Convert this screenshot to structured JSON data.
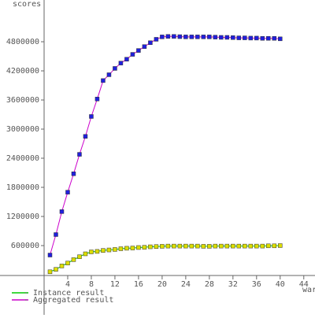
{
  "chart_data": {
    "type": "line",
    "y_label": "scores",
    "x_label": "war",
    "x": [
      1,
      2,
      3,
      4,
      5,
      6,
      7,
      8,
      9,
      10,
      11,
      12,
      13,
      14,
      15,
      16,
      17,
      18,
      19,
      20,
      21,
      22,
      23,
      24,
      25,
      26,
      27,
      28,
      29,
      30,
      31,
      32,
      33,
      34,
      35,
      36,
      37,
      38,
      39,
      40
    ],
    "series": [
      {
        "name": "- Instance result",
        "color": "#00cc00",
        "marker_color": "#dddd00",
        "values": [
          60000,
          110000,
          180000,
          240000,
          310000,
          370000,
          430000,
          470000,
          480000,
          500000,
          510000,
          520000,
          535000,
          545000,
          550000,
          560000,
          565000,
          575000,
          580000,
          585000,
          590000,
          590000,
          590000,
          590000,
          590000,
          590000,
          585000,
          585000,
          590000,
          590000,
          590000,
          590000,
          590000,
          590000,
          590000,
          590000,
          590000,
          595000,
          595000,
          600000
        ]
      },
      {
        "name": "- Aggregated result",
        "color": "#cc00cc",
        "marker_color": "#2020dd",
        "values": [
          405000,
          827000,
          1300000,
          1700000,
          2080000,
          2480000,
          2850000,
          3260000,
          3620000,
          4000000,
          4120000,
          4250000,
          4360000,
          4440000,
          4540000,
          4620000,
          4700000,
          4780000,
          4850000,
          4900000,
          4910000,
          4910000,
          4905000,
          4900000,
          4900000,
          4900000,
          4900000,
          4900000,
          4895000,
          4890000,
          4890000,
          4885000,
          4880000,
          4880000,
          4875000,
          4875000,
          4870000,
          4870000,
          4870000,
          4860000
        ]
      }
    ],
    "xlim": [
      0,
      45.9
    ],
    "ylim": [
      0,
      5660000
    ],
    "xticks": [
      4,
      8,
      12,
      16,
      20,
      24,
      28,
      32,
      36,
      40,
      44
    ],
    "yticks": [
      600000,
      1200000,
      1800000,
      2400000,
      3000000,
      3600000,
      4200000,
      4800000
    ]
  }
}
